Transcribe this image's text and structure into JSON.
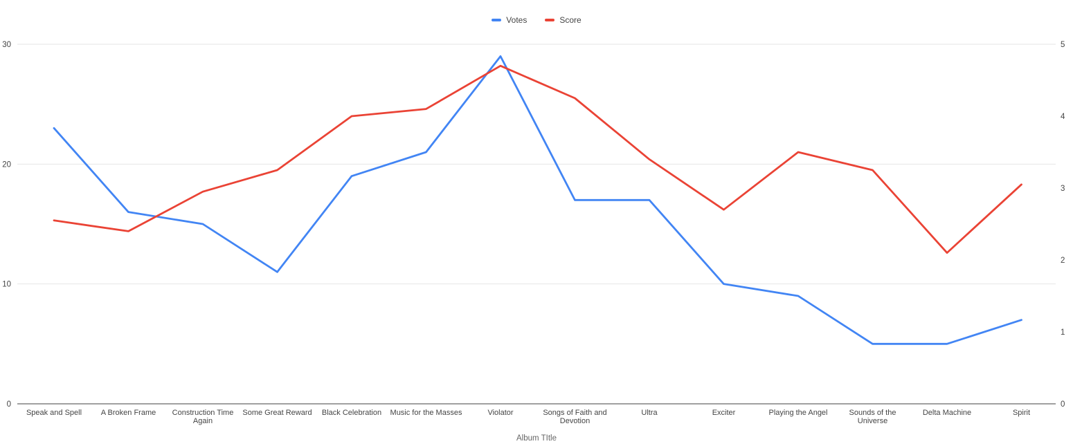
{
  "legend": {
    "items": [
      {
        "label": "Votes",
        "color": "#4285F4",
        "icon": "line-swatch"
      },
      {
        "label": "Score",
        "color": "#EA4335",
        "icon": "line-swatch"
      }
    ]
  },
  "axes": {
    "left": {
      "ticks": [
        "0",
        "10",
        "20",
        "30"
      ],
      "tick_values": [
        0,
        10,
        20,
        30
      ],
      "max": 30
    },
    "right": {
      "ticks": [
        "0",
        "1",
        "2",
        "3",
        "4",
        "5"
      ],
      "tick_values": [
        0,
        1,
        2,
        3,
        4,
        5
      ],
      "max": 5
    },
    "x_title": "Album TItle"
  },
  "chart_data": {
    "type": "line",
    "title": "",
    "xlabel": "Album TItle",
    "ylabel_left": "",
    "ylim_left": [
      0,
      30
    ],
    "ylim_right": [
      0,
      5
    ],
    "grid": true,
    "legend_position": "top-center",
    "categories": [
      "Speak and Spell",
      "A Broken Frame",
      "Construction Time Again",
      "Some Great Reward",
      "Black Celebration",
      "Music for the Masses",
      "Violator",
      "Songs of Faith and Devotion",
      "Ultra",
      "Exciter",
      "Playing the Angel",
      "Sounds of the Universe",
      "Delta Machine",
      "Spirit"
    ],
    "category_label_lines": [
      [
        "Speak and Spell"
      ],
      [
        "A Broken Frame"
      ],
      [
        "Construction Time",
        "Again"
      ],
      [
        "Some Great Reward"
      ],
      [
        "Black Celebration"
      ],
      [
        "Music for the Masses"
      ],
      [
        "Violator"
      ],
      [
        "Songs of Faith and",
        "Devotion"
      ],
      [
        "Ultra"
      ],
      [
        "Exciter"
      ],
      [
        "Playing the Angel"
      ],
      [
        "Sounds of the",
        "Universe"
      ],
      [
        "Delta Machine"
      ],
      [
        "Spirit"
      ]
    ],
    "series": [
      {
        "name": "Votes",
        "axis": "left",
        "color": "#4285F4",
        "values": [
          23,
          16,
          15,
          11,
          19,
          21,
          29,
          17,
          17,
          10,
          9,
          5,
          5,
          7
        ]
      },
      {
        "name": "Score",
        "axis": "right",
        "color": "#EA4335",
        "values": [
          2.55,
          2.4,
          2.95,
          3.25,
          4.0,
          4.1,
          4.7,
          4.25,
          3.4,
          2.7,
          3.5,
          3.25,
          2.1,
          3.05
        ]
      }
    ]
  },
  "colors": {
    "background": "#ffffff",
    "gridline": "#e6e6e6",
    "axis_line": "#424242",
    "tick_label": "#444444",
    "axis_title": "#666666"
  }
}
